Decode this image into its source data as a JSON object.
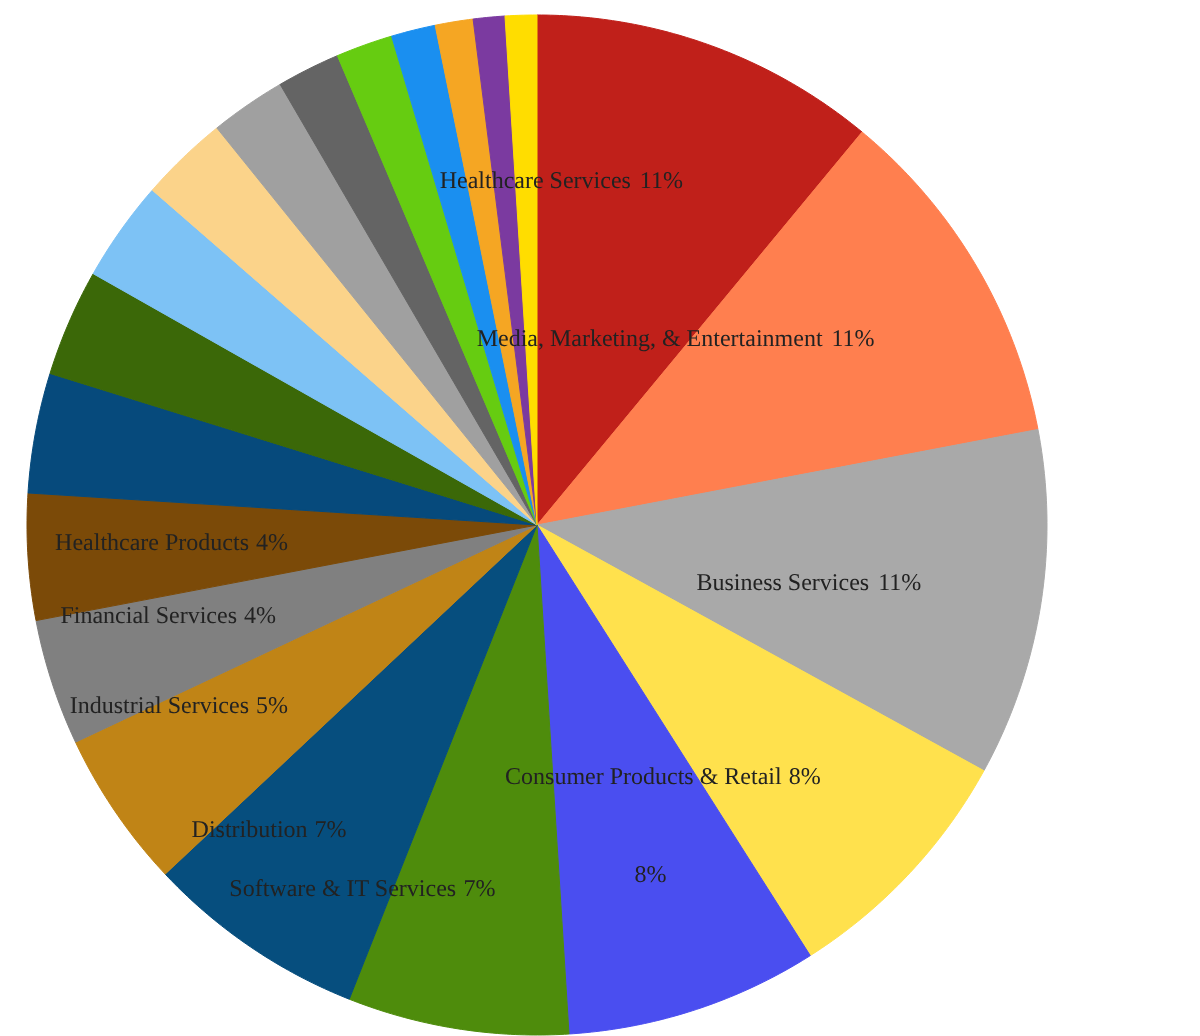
{
  "chart_data": {
    "type": "pie",
    "categories": [
      "Healthcare Services",
      "Media, Marketing, & Entertainment",
      "Business Services",
      "Consumer Products & Retail",
      null,
      "Software & IT Services",
      "Distribution",
      "Industrial Services",
      "Financial Services",
      "Healthcare Products",
      null,
      null,
      null,
      null,
      null,
      null,
      null,
      null,
      null,
      null,
      null
    ],
    "values": [
      11,
      11,
      11,
      8,
      8,
      7,
      7,
      5,
      4,
      4,
      3.8,
      3.4,
      3.2,
      2.8,
      2.4,
      2,
      1.8,
      1.4,
      1.2,
      1,
      1
    ],
    "colors": [
      "#c0201a",
      "#ff7f4f",
      "#a9a9a9",
      "#ffe14d",
      "#4a4ef0",
      "#4e8c0c",
      "#064e7e",
      "#c08416",
      "#808080",
      "#7b4a08",
      "#064a7c",
      "#3b6808",
      "#7dc2f5",
      "#fbd38a",
      "#a0a0a0",
      "#646464",
      "#66cc11",
      "#1a8ff0",
      "#f5a623",
      "#7b3aa0",
      "#ffdd00"
    ],
    "value_labels": [
      "11%",
      "11%",
      "11%",
      "8%",
      "8%",
      "7%",
      "7%",
      "5%",
      "4%",
      "4%",
      null,
      null,
      null,
      null,
      null,
      null,
      null,
      null,
      null,
      null,
      null
    ]
  }
}
